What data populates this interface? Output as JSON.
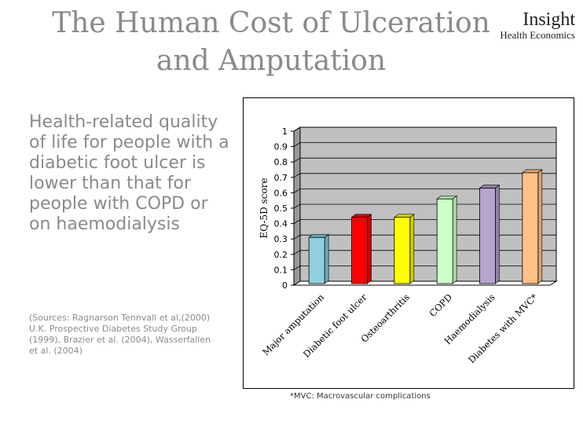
{
  "slide": {
    "title_line1": "The Human Cost of Ulceration",
    "title_line2": "and Amputation",
    "logo_main": "Insight",
    "logo_sub": "Health Economics",
    "body_text": "Health-related quality of life for people with a diabetic foot ulcer is lower than that for people with COPD or on haemodialysis",
    "sources": "(Sources: Ragnarson Tennvall et al,(2000) U.K. Prospective Diabetes Study Group (1999), Brazier et al. (2004), Wasserfallen et al. (2004)",
    "footnote": "*MVC: Macrovascular complications"
  },
  "chart_data": {
    "type": "bar",
    "categories": [
      "Major amputation",
      "Diabetic foot ulcer",
      "Osteoarthritis",
      "COPD",
      "Haemodialysis",
      "Diabetes with MVC*"
    ],
    "values": [
      0.31,
      0.44,
      0.44,
      0.56,
      0.63,
      0.73
    ],
    "colors": [
      "#8fcfe0",
      "#ff0000",
      "#ffff00",
      "#ccffcc",
      "#b7a4cc",
      "#ffc08a"
    ],
    "top_colors": [
      "#6aa8b8",
      "#cc0000",
      "#cccc00",
      "#a6dca6",
      "#9180a8",
      "#e0a070"
    ],
    "ylabel": "EQ-5D score",
    "xlabel": "",
    "ylim": [
      0,
      1
    ],
    "yticks": [
      "0",
      "0.1",
      "0.2",
      "0.3",
      "0.4",
      "0.5",
      "0.6",
      "0.7",
      "0.8",
      "0.9",
      "1"
    ],
    "grid": true,
    "wall_color": "#c0c0c0",
    "floor_color": "#ffffff"
  }
}
